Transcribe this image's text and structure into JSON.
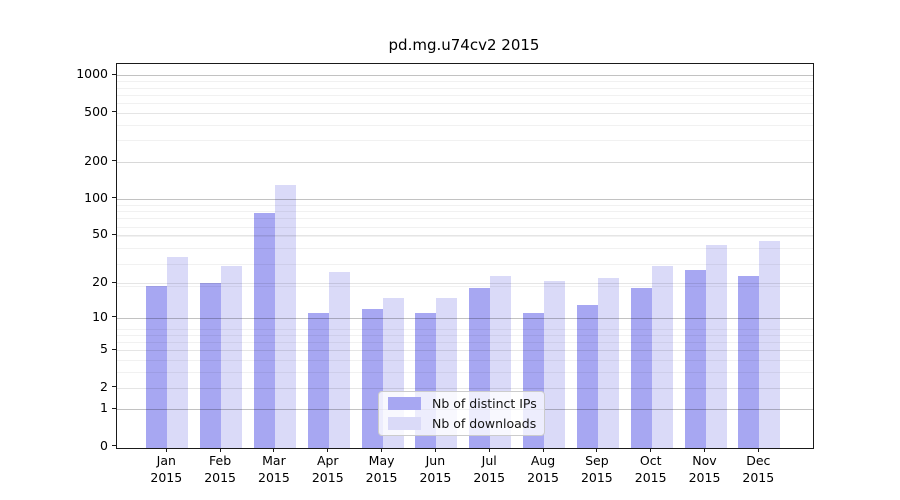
{
  "title": "pd.mg.u74cv2 2015",
  "colors": {
    "distinct_ips_bar": "#a7a7f2",
    "downloads_bar": "#dadaf8",
    "axis_line": "#1a1a1a",
    "background": "#ffffff"
  },
  "chart_data": {
    "type": "bar",
    "title": "pd.mg.u74cv2 2015",
    "categories": [
      "Jan 2015",
      "Feb 2015",
      "Mar 2015",
      "Apr 2015",
      "May 2015",
      "Jun 2015",
      "Jul 2015",
      "Aug 2015",
      "Sep 2015",
      "Oct 2015",
      "Nov 2015",
      "Dec 2015"
    ],
    "series": [
      {
        "name": "Nb of distinct IPs",
        "color": "#a7a7f2",
        "values": [
          19,
          20,
          76,
          11,
          12,
          11,
          18,
          11,
          13,
          18,
          26,
          23
        ]
      },
      {
        "name": "Nb of downloads",
        "color": "#dadaf8",
        "values": [
          33,
          28,
          130,
          25,
          15,
          15,
          23,
          21,
          22,
          28,
          42,
          45
        ]
      }
    ],
    "xlabel": "",
    "ylabel": "",
    "y_axis": {
      "scale": "log10(value+1)",
      "tick_values": [
        0,
        1,
        2,
        5,
        10,
        20,
        50,
        100,
        200,
        500,
        1000
      ],
      "tick_labels": [
        "0",
        "1",
        "2",
        "5",
        "10",
        "20",
        "50",
        "100",
        "200",
        "500",
        "1000"
      ],
      "range": [
        0,
        1250
      ]
    },
    "grid": true,
    "legend_position": "inside bottom-center"
  }
}
